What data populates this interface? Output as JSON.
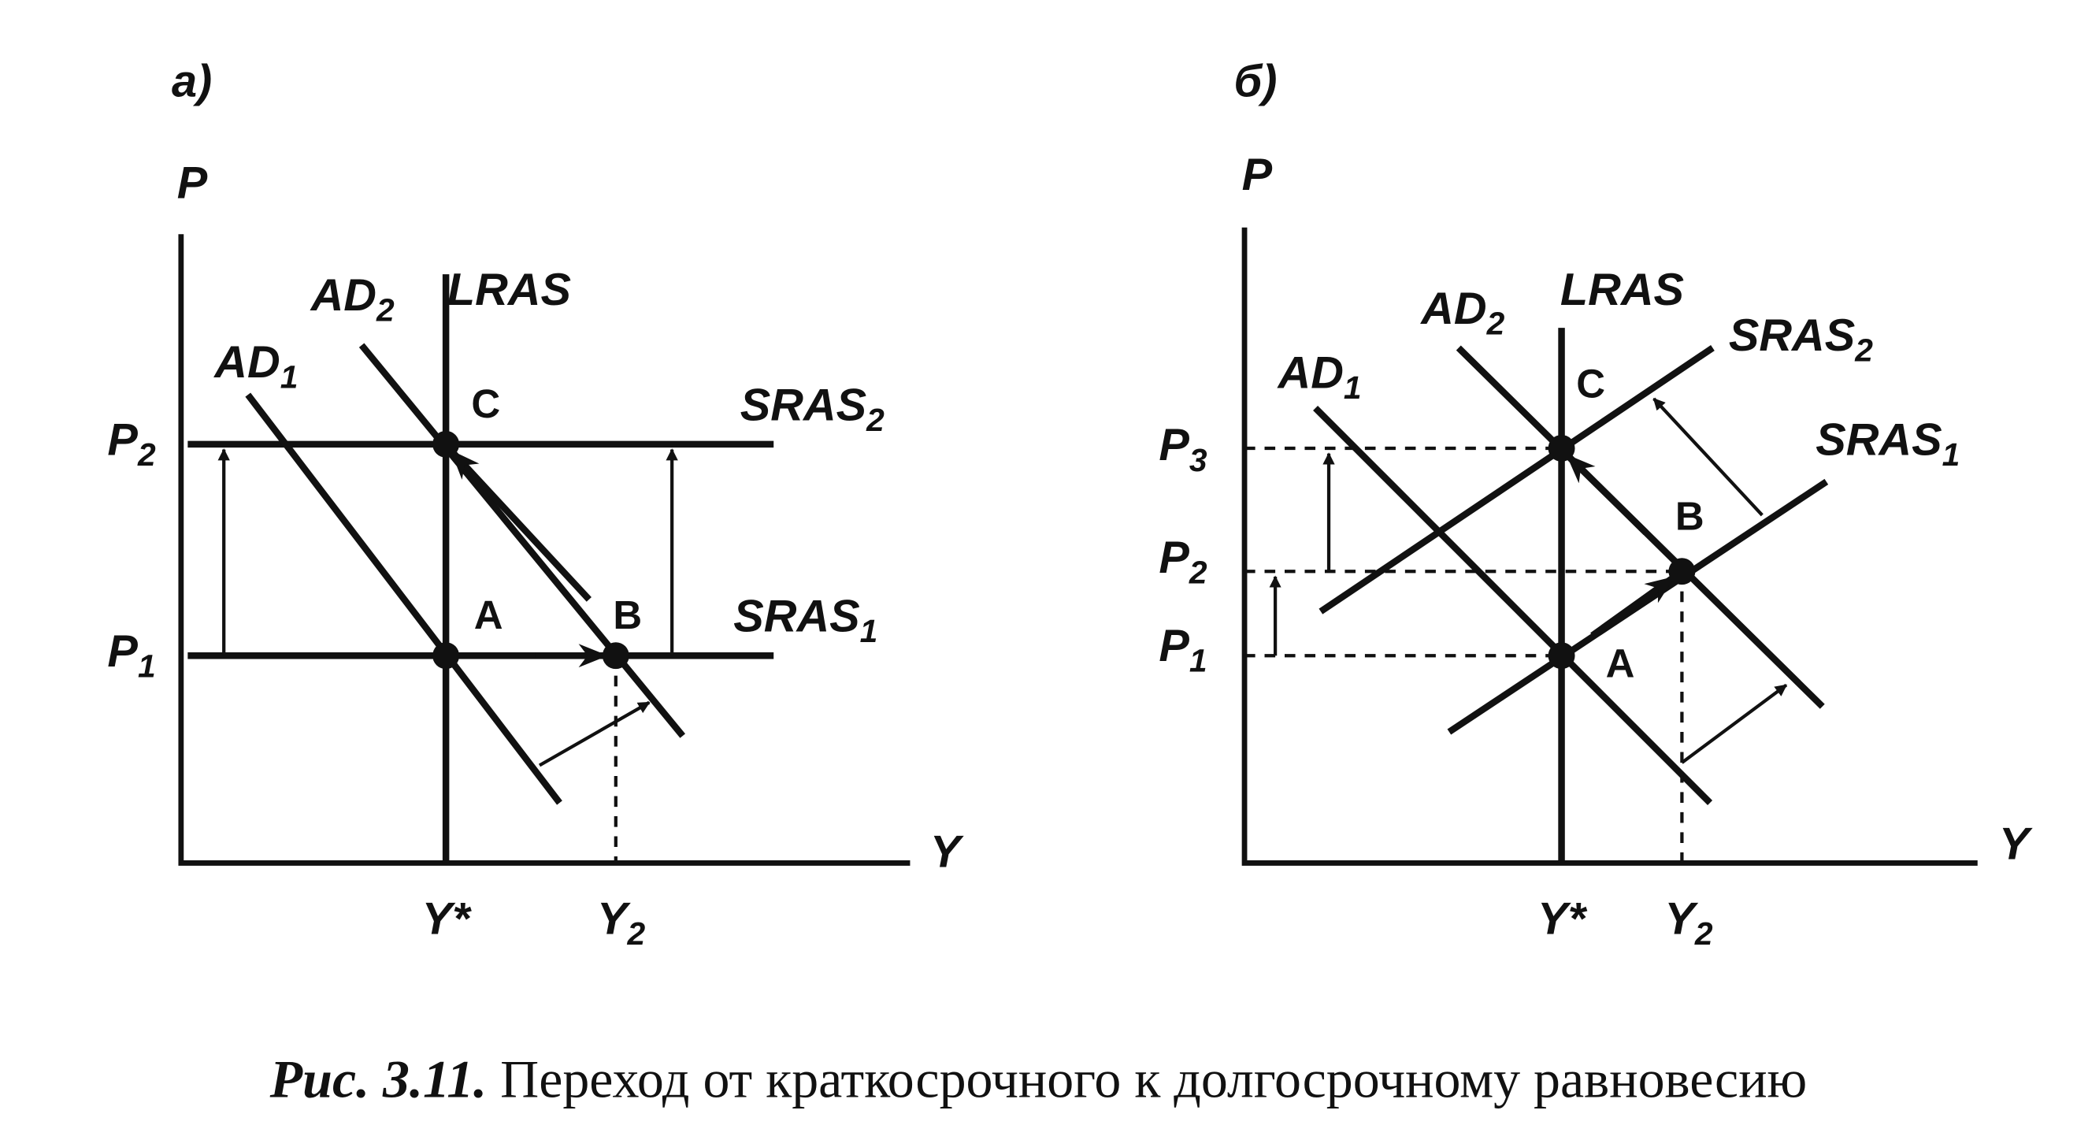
{
  "panels": [
    {
      "label": "а)",
      "y_axis": "P",
      "x_axis": "Y",
      "lras": "LRAS",
      "ad1": {
        "text": "AD",
        "sub": "1"
      },
      "ad2": {
        "text": "AD",
        "sub": "2"
      },
      "sras1": {
        "text": "SRAS",
        "sub": "1"
      },
      "sras2": {
        "text": "SRAS",
        "sub": "2"
      },
      "points": [
        "C",
        "A",
        "B"
      ],
      "price_levels": [
        {
          "text": "P",
          "sub": "2"
        },
        {
          "text": "P",
          "sub": "1"
        }
      ],
      "y_star": "Y*",
      "y2": {
        "text": "Y",
        "sub": "2"
      }
    },
    {
      "label": "б)",
      "y_axis": "P",
      "x_axis": "Y",
      "lras": "LRAS",
      "ad1": {
        "text": "AD",
        "sub": "1"
      },
      "ad2": {
        "text": "AD",
        "sub": "2"
      },
      "sras1": {
        "text": "SRAS",
        "sub": "1"
      },
      "sras2": {
        "text": "SRAS",
        "sub": "2"
      },
      "points": [
        "C",
        "B",
        "A"
      ],
      "price_levels": [
        {
          "text": "P",
          "sub": "3"
        },
        {
          "text": "P",
          "sub": "2"
        },
        {
          "text": "P",
          "sub": "1"
        }
      ],
      "y_star": "Y*",
      "y2": {
        "text": "Y",
        "sub": "2"
      }
    }
  ],
  "caption": {
    "number": "Рис. 3.11.",
    "text": "Переход от краткосрочного к долгосрочному равновесию"
  }
}
